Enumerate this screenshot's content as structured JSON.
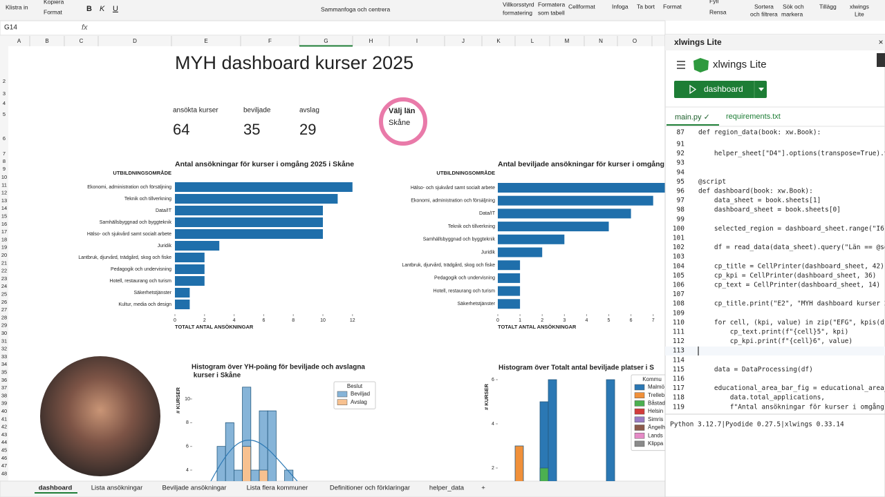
{
  "ribbon": [
    "Klistra in",
    "Kopiera",
    "Format",
    "B",
    "K",
    "U",
    "Sammanfoga och centrera",
    "Villkorsstyrd",
    "formatering",
    "Formatera",
    "som tabell",
    "Cellformat",
    "Infoga",
    "Ta bort",
    "Format",
    "Fyll",
    "Rensa",
    "Sortera",
    "och filtrera",
    "Sök och",
    "markera",
    "Tillägg",
    "xlwings",
    "Lite"
  ],
  "formula_bar": {
    "cell": "G14",
    "fx": "fx"
  },
  "columns": [
    "A",
    "B",
    "C",
    "D",
    "E",
    "F",
    "G",
    "H",
    "I",
    "J",
    "K",
    "L",
    "M",
    "N",
    "O"
  ],
  "rows": [
    2,
    3,
    4,
    5,
    6,
    7,
    8,
    9,
    10,
    11,
    12,
    13,
    14,
    15,
    16,
    17,
    18,
    19,
    20,
    21,
    22,
    23,
    24,
    25,
    26,
    27,
    28,
    29,
    30,
    31,
    32,
    33,
    34,
    35,
    36,
    37,
    38,
    39,
    40,
    41,
    42,
    43,
    44,
    45,
    46,
    47,
    48
  ],
  "dashboard": {
    "title": "MYH dashboard kurser 2025",
    "kpis": [
      {
        "label": "ansökta kurser",
        "value": 64
      },
      {
        "label": "beviljade",
        "value": 35
      },
      {
        "label": "avslag",
        "value": 29
      }
    ],
    "select": {
      "label": "Välj län",
      "value": "Skåne"
    }
  },
  "charts": [
    {
      "type": "bar",
      "title": "Antal ansökningar för kurser i omgång 2025 i Skåne",
      "y_label": "UTBILDNINGSOMRÅDE",
      "x_label": "TOTALT ANTAL ANSÖKNINGAR",
      "color": "#1f6fab",
      "categories": [
        "Ekonomi, administration och försäljning",
        "Teknik och tillverkning",
        "Data/IT",
        "Samhällsbyggnad och byggteknik",
        "Hälso- och sjukvård samt socialt arbete",
        "Juridik",
        "Lantbruk, djurvård, trädgård, skog och fiske",
        "Pedagogik och undervisning",
        "Hotell, restaurang och turism",
        "Säkerhetstjänster",
        "Kultur, media och design"
      ],
      "values": [
        12,
        11,
        10,
        10,
        10,
        3,
        2,
        2,
        2,
        1,
        1
      ],
      "xticks": [
        0,
        2,
        4,
        6,
        8,
        10,
        12
      ]
    },
    {
      "type": "bar",
      "title": "Antal beviljade ansökningar för kurser i omgång",
      "y_label": "UTBILDNINGSOMRÅDE",
      "x_label": "TOTALT ANTAL ANSÖKNINGAR",
      "color": "#1f6fab",
      "categories": [
        "Hälso- och sjukvård samt socialt arbete",
        "Ekonomi, administration och försäljning",
        "Data/IT",
        "Teknik och tillverkning",
        "Samhällsbyggnad och byggteknik",
        "Juridik",
        "Lantbruk, djurvård, trädgård, skog och fiske",
        "Pedagogik och undervisning",
        "Hotell, restaurang och turism",
        "Säkerhetstjänster"
      ],
      "values": [
        8,
        7,
        6,
        5,
        3,
        2,
        1,
        1,
        1,
        1
      ],
      "xticks": [
        0,
        1,
        2,
        3,
        4,
        5,
        6,
        7
      ]
    },
    {
      "type": "histogram",
      "title_lines": [
        "Histogram över YH-poäng för beviljade och avslagna",
        " kurser i Skåne"
      ],
      "y_label": "# KURSER",
      "yticks": [
        4,
        6,
        8,
        10
      ],
      "legend_title": "Beslut",
      "series": [
        {
          "name": "Beviljad",
          "color": "#86b4d8",
          "values": [
            6,
            8,
            4,
            11,
            4,
            9,
            9,
            0,
            4
          ]
        },
        {
          "name": "Avslag",
          "color": "#f7c190",
          "values": [
            0,
            0,
            0,
            6,
            0,
            4,
            0,
            0,
            0
          ]
        }
      ]
    },
    {
      "type": "histogram",
      "title_lines": [
        "Histogram över Totalt antal beviljade platser i S"
      ],
      "y_label": "# KURSER",
      "yticks": [
        2,
        4,
        6
      ],
      "legend_title": "Kommu",
      "series": [
        {
          "name": "Malmö",
          "color": "#2b78b4",
          "values": [
            0,
            0,
            1,
            5,
            6,
            1,
            0,
            0,
            0,
            0,
            0,
            6
          ]
        },
        {
          "name": "Trelleb",
          "color": "#f0903a",
          "values": [
            3,
            0,
            0,
            0,
            0,
            0,
            0,
            0,
            0,
            0,
            0,
            0
          ]
        },
        {
          "name": "Båstad",
          "color": "#4cb050",
          "values": [
            0,
            0,
            0,
            2,
            0,
            0,
            0,
            0,
            0,
            0,
            0,
            0
          ]
        },
        {
          "name": "Helsin",
          "color": "#d23c3c",
          "values": [
            0,
            0,
            0,
            0,
            0,
            0,
            0,
            1,
            0,
            0,
            0,
            0
          ]
        },
        {
          "name": "Simris",
          "color": "#9a7cc4",
          "values": [
            0,
            0,
            0,
            0,
            0,
            0,
            0,
            0,
            0,
            0,
            0,
            0
          ]
        },
        {
          "name": "Ängelh",
          "color": "#8c5a4b",
          "values": [
            0,
            0,
            0,
            0,
            0,
            0,
            0,
            0,
            0,
            0,
            0,
            0
          ]
        },
        {
          "name": "Lands",
          "color": "#e58ac6",
          "values": [
            0,
            0,
            0,
            0,
            0,
            0,
            0,
            0,
            0,
            0,
            0,
            0
          ]
        },
        {
          "name": "Klippa",
          "color": "#8a8a8a",
          "values": [
            0,
            0,
            0,
            0,
            0,
            0,
            0,
            0,
            0,
            0,
            0,
            0
          ]
        }
      ]
    }
  ],
  "sheet_tabs": [
    "dashboard",
    "Lista ansökningar",
    "Beviljade ansökningar",
    "Lista flera kommuner",
    "Definitioner och förklaringar",
    "helper_data",
    "+"
  ],
  "panel": {
    "header": "xlwings Lite",
    "app_name": "xlwings Lite",
    "button": "dashboard",
    "tabs": [
      "main.py ✓",
      "requirements.txt"
    ],
    "code": [
      {
        "num": 87,
        "code": "def region_data(book: xw.Book):"
      },
      {
        "num": 91
      },
      {
        "num": 92,
        "code": "    helper_sheet[\"D4\"].options(transpose=True).val"
      },
      {
        "num": 93
      },
      {
        "num": 94
      },
      {
        "num": 95,
        "code": "@script"
      },
      {
        "num": 96,
        "code": "def dashboard(book: xw.Book):"
      },
      {
        "num": 97,
        "code": "    data_sheet = book.sheets[1]"
      },
      {
        "num": 98,
        "code": "    dashboard_sheet = book.sheets[0]"
      },
      {
        "num": 99
      },
      {
        "num": 100,
        "code": "    selected_region = dashboard_sheet.range(\"I6\")."
      },
      {
        "num": 101
      },
      {
        "num": 102,
        "code": "    df = read_data(data_sheet).query(\"Län == @sele"
      },
      {
        "num": 103
      },
      {
        "num": 104,
        "code": "    cp_title = CellPrinter(dashboard_sheet, 42)"
      },
      {
        "num": 105,
        "code": "    cp_kpi = CellPrinter(dashboard_sheet, 36)"
      },
      {
        "num": 106,
        "code": "    cp_text = CellPrinter(dashboard_sheet, 14)"
      },
      {
        "num": 107
      },
      {
        "num": 108,
        "code": "    cp_title.print(\"E2\", \"MYH dashboard kurser 202"
      },
      {
        "num": 109
      },
      {
        "num": 110,
        "code": "    for cell, (kpi, value) in zip(\"EFG\", kpis(df)."
      },
      {
        "num": 111,
        "code": "        cp_text.print(f\"{cell}5\", kpi)"
      },
      {
        "num": 112,
        "code": "        cp_kpi.print(f\"{cell}6\", value)"
      },
      {
        "num": 113
      },
      {
        "num": 114
      },
      {
        "num": 115,
        "code": "    data = DataProcessing(df)"
      },
      {
        "num": 116
      },
      {
        "num": 117,
        "code": "    educational_area_bar_fig = educational_area_ba"
      },
      {
        "num": 118,
        "code": "        data.total_applications,"
      },
      {
        "num": 119,
        "code": "        f\"Antal ansökningar för kurser i omgång 20"
      }
    ],
    "status": "Python 3.12.7|Pyodide 0.27.5|xlwings 0.33.14"
  }
}
